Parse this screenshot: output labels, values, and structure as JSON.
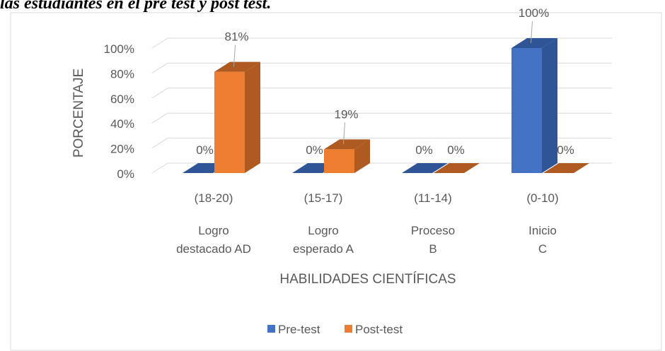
{
  "caption": "las estudiantes en el pre test y post test.",
  "chart_data": {
    "type": "bar3d",
    "categories": [
      [
        "(18-20)",
        "Logro",
        "destacado  AD"
      ],
      [
        "(15-17)",
        "Logro",
        "esperado  A"
      ],
      [
        "(11-14)",
        "Proceso",
        "B"
      ],
      [
        "(0-10)",
        "Inicio",
        "C"
      ]
    ],
    "series": [
      {
        "name": "Pre-test",
        "color": "#4472c4",
        "side_color": "#2f5597",
        "values": [
          0,
          0,
          0,
          100
        ],
        "value_labels": [
          "0%",
          "0%",
          "0%",
          "100%"
        ]
      },
      {
        "name": "Post-test",
        "color": "#ed7d31",
        "side_color": "#ae5a21",
        "values": [
          81,
          19,
          0,
          0
        ],
        "value_labels": [
          "81%",
          "19%",
          "0%",
          "0%"
        ]
      }
    ],
    "ylim": [
      0,
      100
    ],
    "yticks": [
      {
        "value": 0,
        "label": "0%"
      },
      {
        "value": 20,
        "label": "20%"
      },
      {
        "value": 40,
        "label": "40%"
      },
      {
        "value": 60,
        "label": "60%"
      },
      {
        "value": 80,
        "label": "80%"
      },
      {
        "value": 100,
        "label": "100%"
      }
    ],
    "y_label": "PORCENTAJE",
    "x_label": "HABILIDADES CIENTÍFICAS",
    "grid": true,
    "legend": "bottom"
  }
}
